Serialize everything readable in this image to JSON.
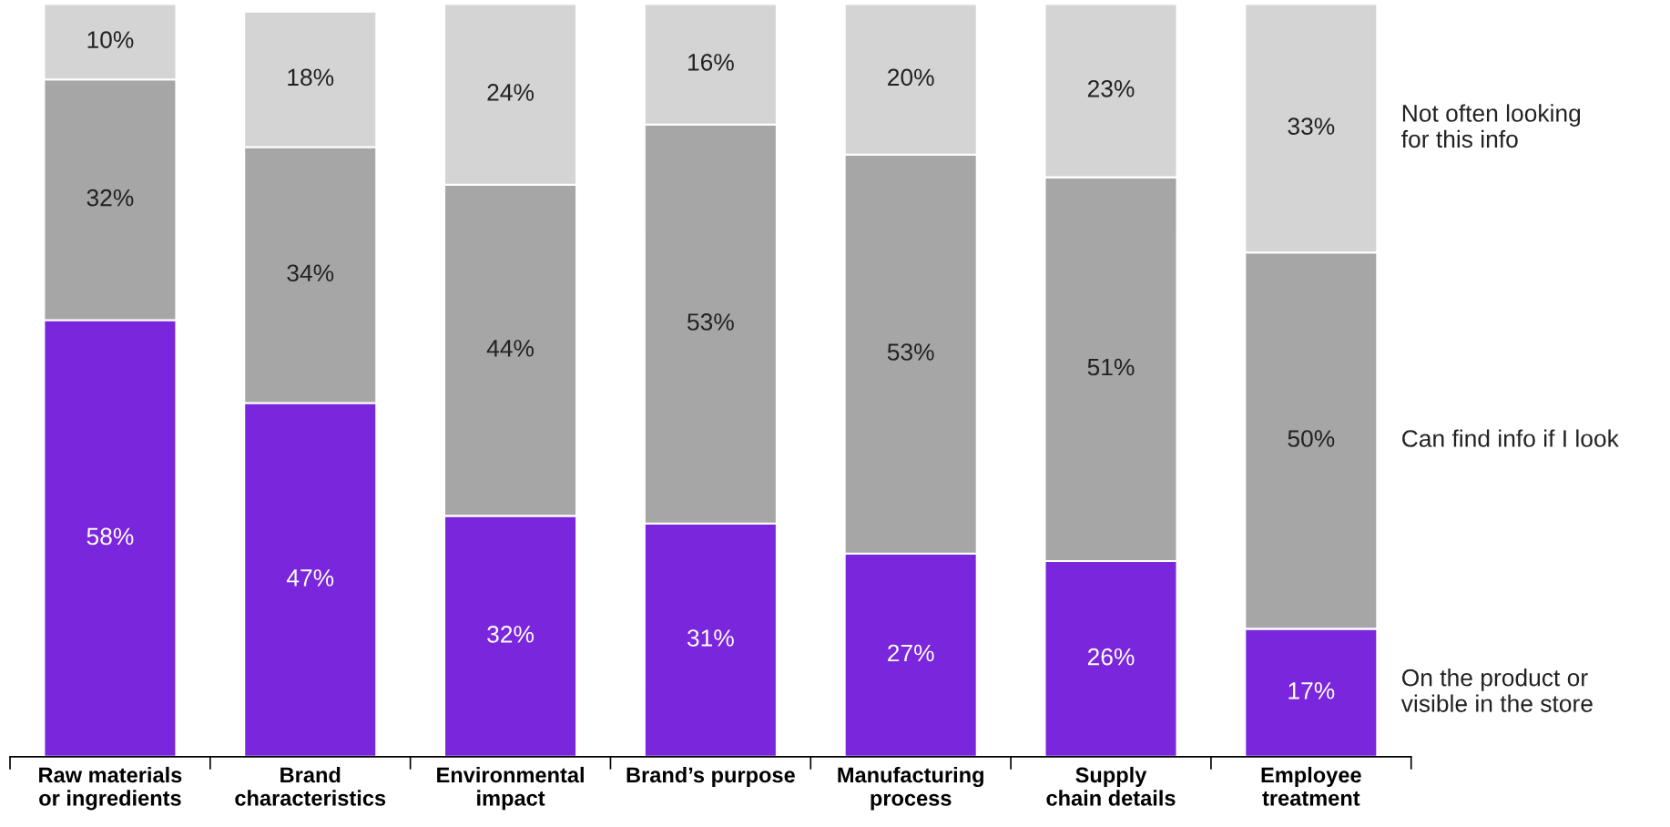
{
  "chart_data": {
    "type": "bar",
    "stacked": true,
    "legend": "right",
    "categories": [
      "Raw materials\nor ingredients",
      "Brand\ncharacteristics",
      "Environmental\nimpact",
      "Brand’s purpose",
      "Manufacturing\nprocess",
      "Supply\nchain details",
      "Employee\ntreatment"
    ],
    "series": [
      {
        "name": "On the product or\nvisible in the store",
        "color": "#7a26dc",
        "values": [
          58,
          47,
          32,
          31,
          27,
          26,
          17
        ],
        "value_labels": [
          "58%",
          "47%",
          "32%",
          "31%",
          "27%",
          "26%",
          "17%"
        ]
      },
      {
        "name": "Can find info if I look",
        "color": "#a6a6a6",
        "values": [
          32,
          34,
          44,
          53,
          53,
          51,
          50
        ],
        "value_labels": [
          "32%",
          "34%",
          "44%",
          "53%",
          "53%",
          "51%",
          "50%"
        ]
      },
      {
        "name": "Not often looking\nfor this info",
        "color": "#d4d4d4",
        "values": [
          10,
          18,
          24,
          16,
          20,
          23,
          33
        ],
        "value_labels": [
          "10%",
          "18%",
          "24%",
          "16%",
          "20%",
          "23%",
          "33%"
        ]
      }
    ]
  }
}
